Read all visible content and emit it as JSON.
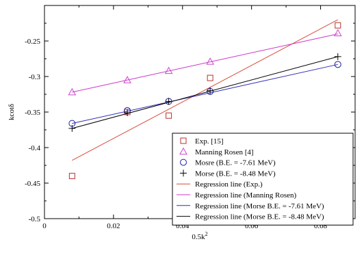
{
  "chart_data": {
    "type": "scatter",
    "xlabel": "0.5k²",
    "ylabel": "kcotδ",
    "xlim": [
      0,
      0.09
    ],
    "ylim": [
      -0.5,
      -0.2
    ],
    "grid": false,
    "legend_placement": "bottom-right",
    "x_ticks": [
      0,
      0.02,
      0.04,
      0.06,
      0.08
    ],
    "x_tick_labels": [
      "0",
      "0.02",
      "0.04",
      "0.06",
      "0.08"
    ],
    "y_ticks": [
      -0.5,
      -0.45,
      -0.4,
      -0.35,
      -0.3,
      -0.25
    ],
    "y_tick_labels": [
      "-0.5",
      "-0.45",
      "-0.4",
      "-0.35",
      "-0.3",
      "-0.25"
    ],
    "series": [
      {
        "name": "Exp. [15]",
        "kind": "points",
        "marker": "square",
        "color": "#b5312b",
        "x": [
          0.008,
          0.024,
          0.036,
          0.048,
          0.085
        ],
        "y": [
          -0.44,
          -0.35,
          -0.355,
          -0.302,
          -0.228
        ]
      },
      {
        "name": "Manning Rosen [4]",
        "kind": "points",
        "marker": "triangle",
        "color": "#cc44cc",
        "x": [
          0.008,
          0.024,
          0.036,
          0.048,
          0.085
        ],
        "y": [
          -0.322,
          -0.305,
          -0.292,
          -0.279,
          -0.239
        ]
      },
      {
        "name": "Mosre (B.E. = -7.61 MeV)",
        "kind": "points",
        "marker": "circle",
        "color": "#1a1aa0",
        "x": [
          0.008,
          0.024,
          0.036,
          0.048,
          0.085
        ],
        "y": [
          -0.366,
          -0.348,
          -0.335,
          -0.321,
          -0.283
        ]
      },
      {
        "name": "Morse (B.E. = -8.48 MeV)",
        "kind": "points",
        "marker": "plus",
        "color": "#000000",
        "x": [
          0.008,
          0.024,
          0.036,
          0.048,
          0.085
        ],
        "y": [
          -0.373,
          -0.351,
          -0.335,
          -0.32,
          -0.272
        ]
      },
      {
        "name": "Regression line (Exp.)",
        "kind": "line",
        "color": "#d94a3a",
        "x": [
          0.008,
          0.085
        ],
        "y": [
          -0.418,
          -0.22
        ]
      },
      {
        "name": "Regression line (Manning Rosen)",
        "kind": "line",
        "color": "#cc33cc",
        "x": [
          0.008,
          0.085
        ],
        "y": [
          -0.322,
          -0.24
        ]
      },
      {
        "name": "Regression line (Morse B.E. = -7.61 MeV)",
        "kind": "line",
        "color": "#2b2bb8",
        "x": [
          0.008,
          0.085
        ],
        "y": [
          -0.366,
          -0.283
        ]
      },
      {
        "name": "Regression line (Morse B.E. = -8.48 MeV)",
        "kind": "line",
        "color": "#000000",
        "x": [
          0.008,
          0.085
        ],
        "y": [
          -0.373,
          -0.272
        ]
      }
    ]
  }
}
